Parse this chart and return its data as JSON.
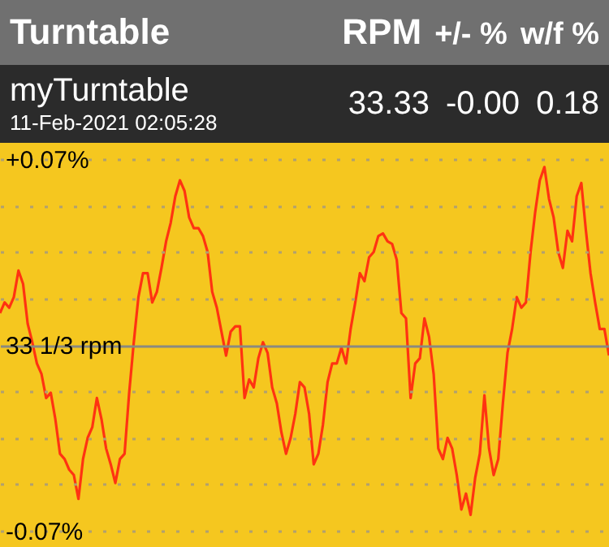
{
  "chart_data": {
    "type": "line",
    "title": "Turntable",
    "annotations": [
      "RPM",
      "+/- %",
      "w/f %",
      "myTurntable",
      "11-Feb-2021 02:05:28",
      "33.33",
      "-0.00",
      "0.18"
    ],
    "categories": [
      null,
      null,
      null,
      null,
      null,
      null,
      null,
      null,
      null,
      null,
      null,
      null,
      null,
      null,
      null,
      null,
      null,
      null,
      null,
      null,
      null,
      null,
      null,
      null,
      null,
      null,
      null,
      null,
      null,
      null,
      null,
      null,
      null,
      null,
      null,
      null,
      null,
      null,
      null,
      null,
      null,
      null,
      null,
      null,
      null,
      null,
      null,
      null,
      null,
      null,
      null,
      null,
      null,
      null,
      null,
      null,
      null,
      null,
      null,
      null,
      null,
      null,
      null,
      null,
      null,
      null,
      null,
      null,
      null,
      null,
      null,
      null,
      null,
      null,
      null,
      null,
      null,
      null,
      null,
      null,
      null,
      null,
      null,
      null,
      null,
      null,
      null,
      null,
      null,
      null,
      null,
      null,
      null,
      null,
      null,
      null,
      null,
      null,
      null,
      null,
      null,
      null,
      null,
      null,
      null,
      null,
      null,
      null,
      null,
      null,
      null,
      null,
      null,
      null,
      null,
      null,
      null,
      null,
      null,
      null,
      null,
      null,
      null,
      null,
      null,
      null,
      null,
      null,
      null,
      null,
      null,
      null,
      null
    ],
    "series": [
      {
        "color": "#ff3311",
        "values": [
          0.012,
          0.016,
          0.014,
          0.018,
          0.028,
          0.023,
          0.008,
          0.001,
          -0.007,
          -0.011,
          -0.02,
          -0.018,
          -0.028,
          -0.041,
          -0.043,
          -0.047,
          -0.049,
          -0.058,
          -0.043,
          -0.035,
          -0.031,
          -0.02,
          -0.028,
          -0.039,
          -0.045,
          -0.052,
          -0.043,
          -0.041,
          -0.018,
          0.001,
          0.018,
          0.027,
          0.027,
          0.016,
          0.02,
          0.029,
          0.039,
          0.046,
          0.056,
          0.062,
          0.058,
          0.048,
          0.044,
          0.044,
          0.041,
          0.035,
          0.02,
          0.014,
          0.005,
          -0.004,
          0.005,
          0.007,
          0.007,
          -0.02,
          -0.013,
          -0.016,
          -0.005,
          0.001,
          -0.003,
          -0.016,
          -0.022,
          -0.033,
          -0.041,
          -0.035,
          -0.026,
          -0.014,
          -0.016,
          -0.026,
          -0.045,
          -0.041,
          -0.03,
          -0.014,
          -0.007,
          -0.007,
          -0.001,
          -0.007,
          0.006,
          0.016,
          0.027,
          0.024,
          0.033,
          0.035,
          0.041,
          0.042,
          0.039,
          0.038,
          0.032,
          0.012,
          0.01,
          -0.02,
          -0.007,
          -0.005,
          0.01,
          0.003,
          -0.011,
          -0.039,
          -0.043,
          -0.035,
          -0.039,
          -0.049,
          -0.062,
          -0.056,
          -0.064,
          -0.05,
          -0.041,
          -0.019,
          -0.039,
          -0.049,
          -0.043,
          -0.022,
          -0.003,
          0.006,
          0.018,
          0.014,
          0.016,
          0.035,
          0.05,
          0.062,
          0.067,
          0.055,
          0.048,
          0.035,
          0.029,
          0.043,
          0.039,
          0.056,
          0.061,
          0.043,
          0.027,
          0.016,
          0.006,
          0.006,
          -0.004
        ]
      }
    ],
    "ylim": [
      -0.07,
      0.07
    ],
    "yticks": [
      {
        "value": -0.07,
        "label": "-0.07%"
      },
      {
        "value": -0.0525,
        "label": null
      },
      {
        "value": -0.035,
        "label": null
      },
      {
        "value": -0.0175,
        "label": null
      },
      {
        "value": 0,
        "label": "33 1/3 rpm"
      },
      {
        "value": 0.0175,
        "label": null
      },
      {
        "value": 0.035,
        "label": null
      },
      {
        "value": 0.0525,
        "label": null
      },
      {
        "value": 0.07,
        "label": "+0.07%"
      }
    ],
    "grid": "y",
    "tick_labels": "y"
  }
}
